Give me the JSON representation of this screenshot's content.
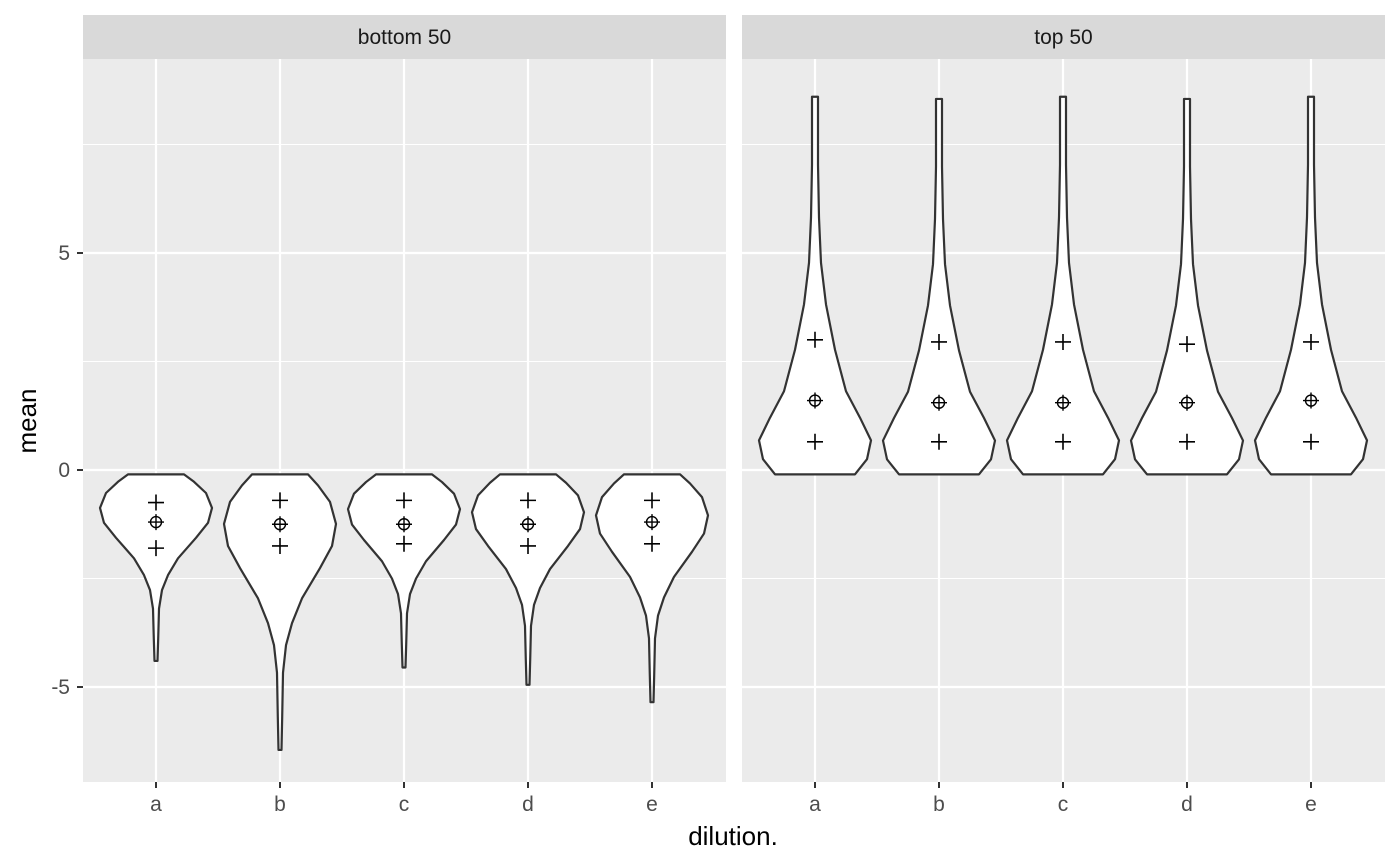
{
  "chart_data": {
    "type": "violin",
    "facet_variable": "",
    "facets": [
      "bottom 50",
      "top 50"
    ],
    "categories": [
      "a",
      "b",
      "c",
      "d",
      "e"
    ],
    "xlabel": "dilution.",
    "ylabel": "mean",
    "ylim": [
      -7.3,
      9.4
    ],
    "yticks": [
      -5,
      0,
      5
    ],
    "ytick_labels": [
      "-5",
      "0",
      "5"
    ],
    "grid": "on",
    "panels": [
      {
        "facet": "bottom 50",
        "violins": [
          {
            "category": "a",
            "min": -4.4,
            "max": -0.1,
            "q25": -1.8,
            "mean": -1.2,
            "q75": -0.75
          },
          {
            "category": "b",
            "min": -6.45,
            "max": -0.1,
            "q25": -1.75,
            "mean": -1.25,
            "q75": -0.7
          },
          {
            "category": "c",
            "min": -4.55,
            "max": -0.1,
            "q25": -1.7,
            "mean": -1.25,
            "q75": -0.7
          },
          {
            "category": "d",
            "min": -4.95,
            "max": -0.1,
            "q25": -1.75,
            "mean": -1.25,
            "q75": -0.7
          },
          {
            "category": "e",
            "min": -5.35,
            "max": -0.1,
            "q25": -1.7,
            "mean": -1.2,
            "q75": -0.7
          }
        ]
      },
      {
        "facet": "top 50",
        "violins": [
          {
            "category": "a",
            "min": -0.1,
            "max": 8.6,
            "q25": 0.65,
            "mean": 1.6,
            "q75": 3.0
          },
          {
            "category": "b",
            "min": -0.1,
            "max": 8.55,
            "q25": 0.65,
            "mean": 1.55,
            "q75": 2.95
          },
          {
            "category": "c",
            "min": -0.1,
            "max": 8.6,
            "q25": 0.65,
            "mean": 1.55,
            "q75": 2.95
          },
          {
            "category": "d",
            "min": -0.1,
            "max": 8.55,
            "q25": 0.65,
            "mean": 1.55,
            "q75": 2.9
          },
          {
            "category": "e",
            "min": -0.1,
            "max": 8.6,
            "q25": 0.65,
            "mean": 1.6,
            "q75": 2.95
          }
        ]
      }
    ]
  },
  "colors": {
    "panel_background": "#ebebeb",
    "strip_background": "#d9d9d9",
    "grid": "#ffffff",
    "violin_fill": "#ffffff",
    "violin_outline": "#333333",
    "marker": "#000000"
  }
}
